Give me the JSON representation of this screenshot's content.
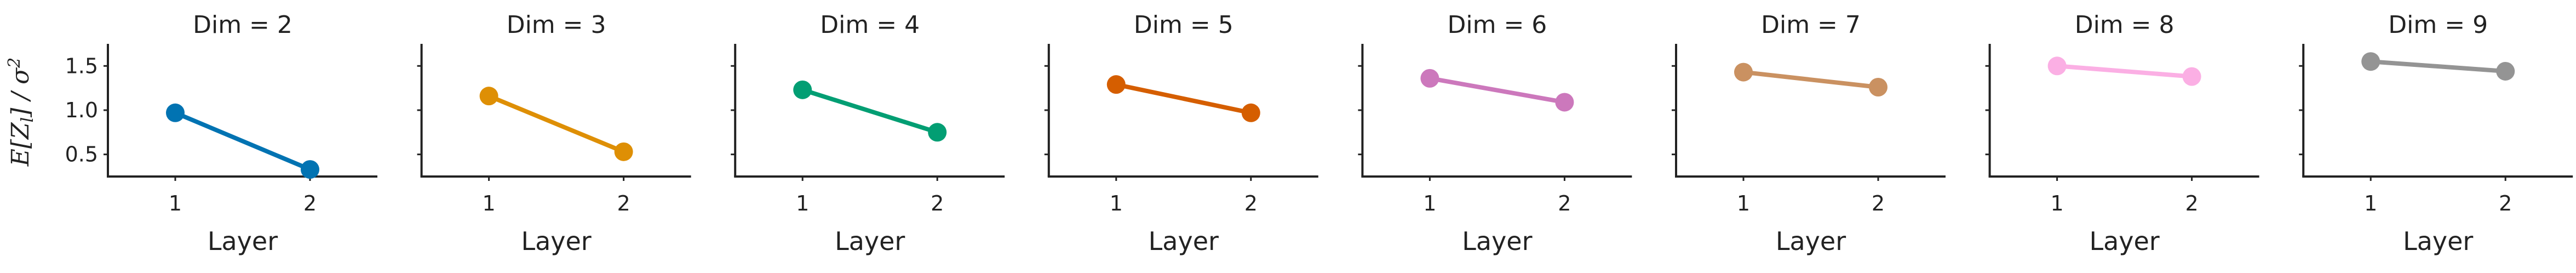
{
  "chart_data": {
    "type": "line",
    "ylabel": "E[Z_l] / σ²",
    "ylim": [
      0.25,
      1.7
    ],
    "yticks": [
      0.5,
      1.0,
      1.5
    ],
    "ytick_labels": [
      "0.5",
      "1.0",
      "1.5"
    ],
    "xlim": [
      0.5,
      2.5
    ],
    "xticks": [
      1,
      2
    ],
    "xtick_labels": [
      "1",
      "2"
    ],
    "grid": false,
    "panels": [
      {
        "title": "Dim = 2",
        "xlabel": "Layer",
        "color": "#0173b2",
        "x": [
          1,
          2
        ],
        "y": [
          0.97,
          0.33
        ]
      },
      {
        "title": "Dim = 3",
        "xlabel": "Layer",
        "color": "#de8f05",
        "x": [
          1,
          2
        ],
        "y": [
          1.16,
          0.53
        ]
      },
      {
        "title": "Dim = 4",
        "xlabel": "Layer",
        "color": "#029e73",
        "x": [
          1,
          2
        ],
        "y": [
          1.23,
          0.75
        ]
      },
      {
        "title": "Dim = 5",
        "xlabel": "Layer",
        "color": "#d55e00",
        "x": [
          1,
          2
        ],
        "y": [
          1.29,
          0.97
        ]
      },
      {
        "title": "Dim = 6",
        "xlabel": "Layer",
        "color": "#cc78bc",
        "x": [
          1,
          2
        ],
        "y": [
          1.36,
          1.09
        ]
      },
      {
        "title": "Dim = 7",
        "xlabel": "Layer",
        "color": "#ca9161",
        "x": [
          1,
          2
        ],
        "y": [
          1.43,
          1.26
        ]
      },
      {
        "title": "Dim = 8",
        "xlabel": "Layer",
        "color": "#fbafe4",
        "x": [
          1,
          2
        ],
        "y": [
          1.5,
          1.38
        ]
      },
      {
        "title": "Dim = 9",
        "xlabel": "Layer",
        "color": "#949494",
        "x": [
          1,
          2
        ],
        "y": [
          1.55,
          1.44
        ]
      }
    ]
  }
}
